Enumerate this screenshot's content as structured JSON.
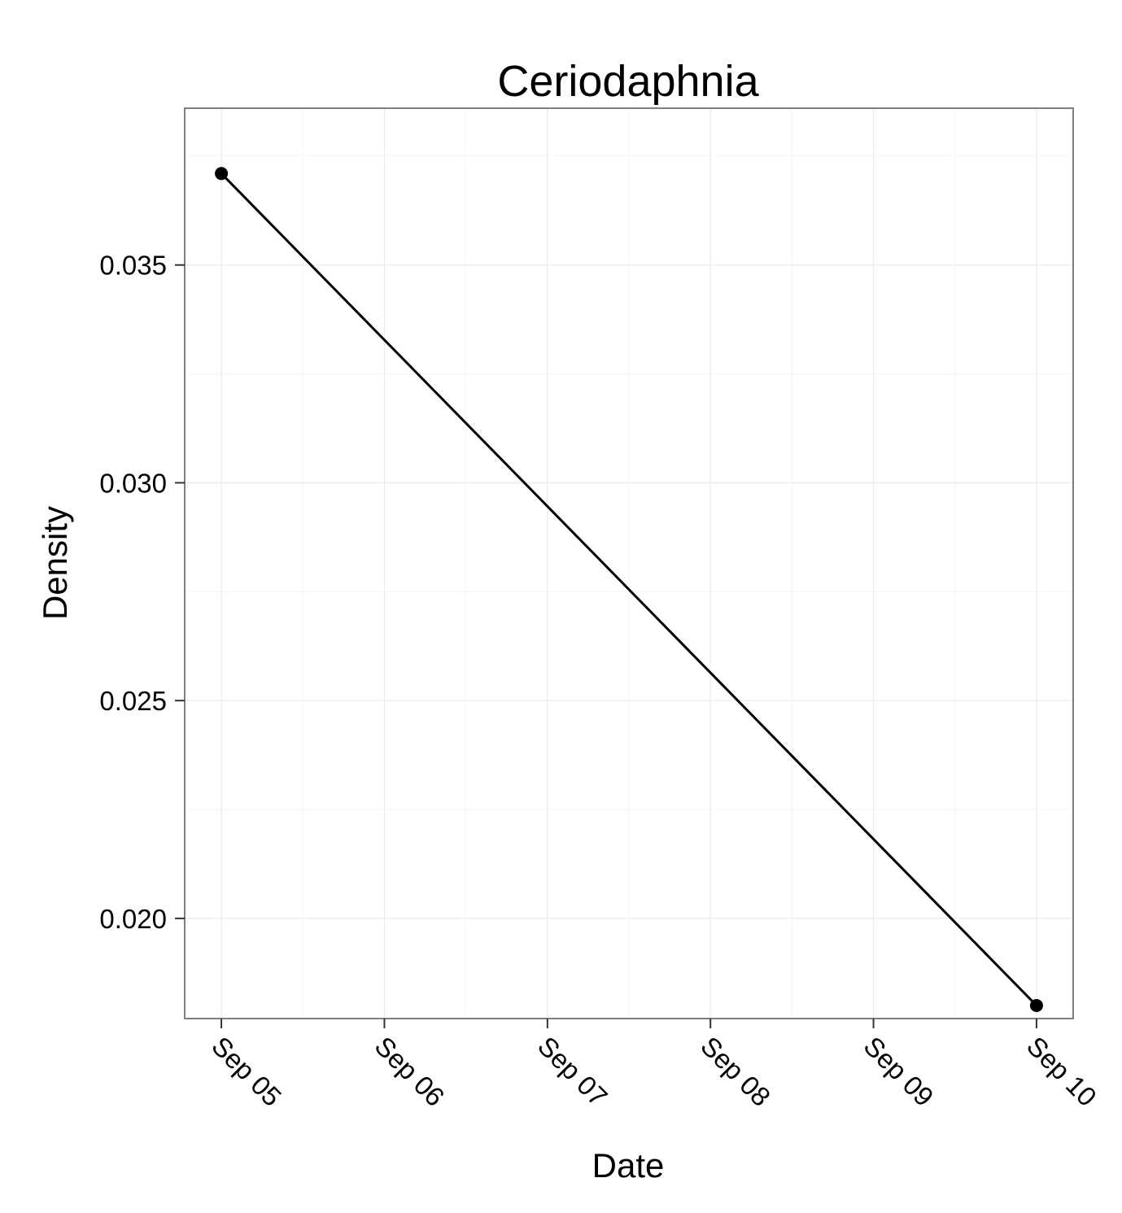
{
  "chart_data": {
    "type": "line",
    "title": "Ceriodaphnia",
    "xlabel": "Date",
    "ylabel": "Density",
    "x_ticks": [
      "Sep 05",
      "Sep 06",
      "Sep 07",
      "Sep 08",
      "Sep 09",
      "Sep 10"
    ],
    "y_ticks": [
      "0.020",
      "0.025",
      "0.030",
      "0.035"
    ],
    "y_tick_values": [
      0.02,
      0.025,
      0.03,
      0.035
    ],
    "xlim": [
      "Sep 05",
      "Sep 10"
    ],
    "ylim": [
      0.0177,
      0.0386
    ],
    "grid": true,
    "series": [
      {
        "x": [
          "Sep 05",
          "Sep 10"
        ],
        "y": [
          0.0371,
          0.018
        ]
      }
    ],
    "colors": {
      "line": "#000000",
      "panel_border": "#7f7f7f",
      "grid": "#ebebeb"
    }
  }
}
